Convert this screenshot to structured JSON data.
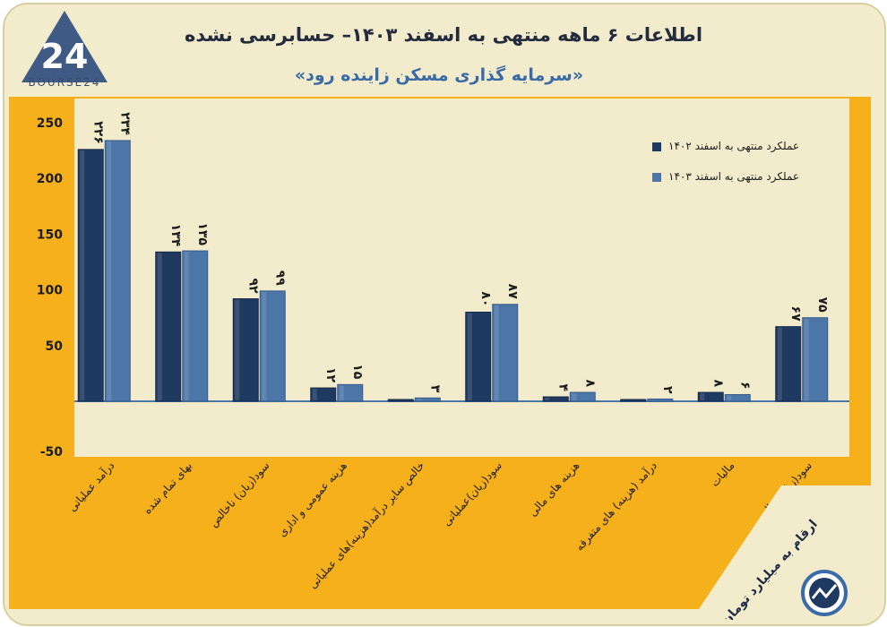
{
  "title": "اطلاعات ۶ ماهه منتهی به اسفند ۱۴۰۳– حسابرسی نشده",
  "subtitle": "«سرمایه گذاری مسکن زاینده رود»",
  "logo": {
    "number": "24",
    "brand": "BOURSE24"
  },
  "note": "ارقام به میلیارد تومان",
  "colors": {
    "s1402": "#1f3a61",
    "s1403": "#4d76a8",
    "orange": "#f5b01b",
    "plot_bg": "#f2eccd",
    "frame": "#f2eccd"
  },
  "chart_data": {
    "type": "bar",
    "ylim": [
      -50,
      250
    ],
    "yticks": [
      "250",
      "200",
      "150",
      "100",
      "50",
      "-50"
    ],
    "legend_position": "top-right",
    "grid": false,
    "categories": [
      "درآمد عملیاتی",
      "بهای تمام شده",
      "سود(زیان) ناخالص",
      "هزینه عمومی و اداری",
      "خالص سایر درآمد(هزینه)های عملیاتی",
      "سود(زیان)عملیاتی",
      "هزینه های مالی",
      "درآمد (هزینه) های متفرقه",
      "مالیات",
      "سود(زیان) خالص"
    ],
    "series": [
      {
        "name": "عملکرد منتهی به اسفند ۱۴۰۲",
        "values": [
          226,
          134,
          92,
          12,
          0,
          80,
          4,
          0,
          8,
          67
        ],
        "labels": [
          "۲۲۶",
          "۱۳۴",
          "۹۲",
          "۱۲",
          "",
          "۸۰",
          "۴",
          "",
          "۸",
          "۶۷"
        ]
      },
      {
        "name": "عملکرد منتهی به اسفند ۱۴۰۳",
        "values": [
          234,
          135,
          99,
          15,
          3,
          87,
          8,
          2,
          6,
          75
        ],
        "labels": [
          "۲۳۴",
          "۱۳۵",
          "۹۹",
          "۱۵",
          "۳",
          "۸۷",
          "۸",
          "۲",
          "۶",
          "۷۵"
        ]
      }
    ]
  }
}
